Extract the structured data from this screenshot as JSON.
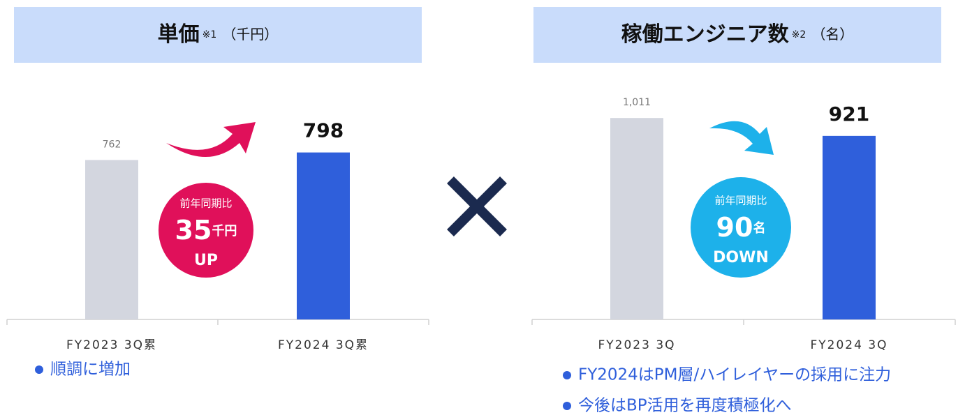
{
  "chart_data": [
    {
      "type": "bar",
      "title": "単価",
      "title_note": "※1",
      "unit": "（千円）",
      "categories": [
        "FY2023 3Q累",
        "FY2024 3Q累"
      ],
      "values": [
        762,
        798
      ],
      "colors": [
        "#d3d6df",
        "#2f5fdb"
      ],
      "ylim": [
        0,
        1000
      ],
      "badge": {
        "label": "前年同期比",
        "value": 35,
        "unit": "千円",
        "direction": "UP",
        "color": "#e0105a"
      },
      "notes": [
        "順調に増加"
      ]
    },
    {
      "type": "bar",
      "title": "稼働エンジニア数",
      "title_note": "※2",
      "unit": "（名）",
      "categories": [
        "FY2023 3Q",
        "FY2024 3Q"
      ],
      "values": [
        1011,
        921
      ],
      "value_labels": [
        "1,011",
        "921"
      ],
      "colors": [
        "#d3d6df",
        "#2f5fdb"
      ],
      "ylim": [
        0,
        1050
      ],
      "badge": {
        "label": "前年同期比",
        "value": 90,
        "unit": "名",
        "direction": "DOWN",
        "color": "#1db1ea"
      },
      "notes": [
        "FY2024はPM層/ハイレイヤーの採用に注力",
        "今後はBP活用を再度積極化へ"
      ]
    }
  ]
}
